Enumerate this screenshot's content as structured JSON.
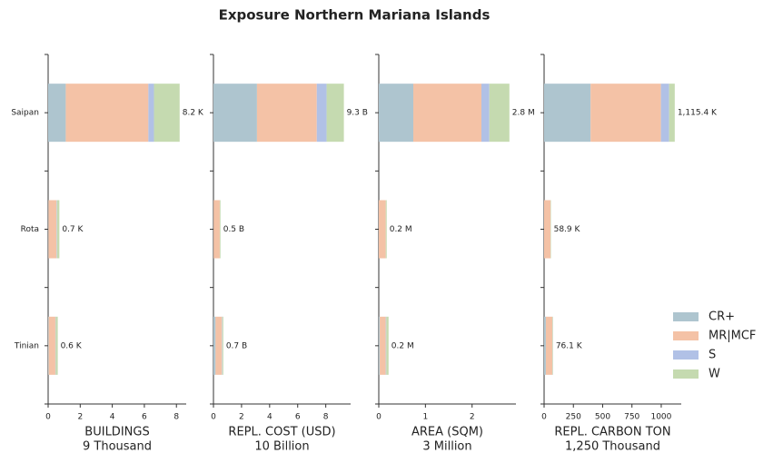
{
  "title": "Exposure Northern Mariana Islands",
  "chart_data": [
    {
      "type": "barh",
      "xlabel": "BUILDINGS",
      "xunit": "9 Thousand",
      "categories": [
        "Saipan",
        "Rota",
        "Tinian"
      ],
      "series": [
        {
          "color": "#aec5cf",
          "values": [
            1.1,
            0.02,
            0.03
          ]
        },
        {
          "color": "#f4c2a6",
          "values": [
            5.15,
            0.5,
            0.42
          ]
        },
        {
          "color": "#b1c1e6",
          "values": [
            0.35,
            0.03,
            0.02
          ]
        },
        {
          "color": "#c5dab0",
          "values": [
            1.6,
            0.15,
            0.13
          ]
        }
      ],
      "value_labels": [
        "8.2 K",
        "0.7 K",
        "0.6 K"
      ],
      "xlim": [
        0,
        8.61
      ],
      "xticks": [
        0,
        2,
        4,
        6,
        8
      ]
    },
    {
      "type": "barh",
      "xlabel": "REPL. COST (USD)",
      "xunit": "10 Billion",
      "categories": [
        "Saipan",
        "Rota",
        "Tinian"
      ],
      "series": [
        {
          "color": "#aec5cf",
          "values": [
            3.1,
            0.01,
            0.15
          ]
        },
        {
          "color": "#f4c2a6",
          "values": [
            4.26,
            0.44,
            0.45
          ]
        },
        {
          "color": "#b1c1e6",
          "values": [
            0.7,
            0.0,
            0.03
          ]
        },
        {
          "color": "#c5dab0",
          "values": [
            1.23,
            0.05,
            0.07
          ]
        }
      ],
      "value_labels": [
        "9.3 B",
        "0.5 B",
        "0.7 B"
      ],
      "xlim": [
        0,
        9.77
      ],
      "xticks": [
        0,
        2,
        4,
        6,
        8
      ]
    },
    {
      "type": "barh",
      "xlabel": "AREA (SQM)",
      "xunit": "3 Million",
      "categories": [
        "Saipan",
        "Rota",
        "Tinian"
      ],
      "series": [
        {
          "color": "#aec5cf",
          "values": [
            0.74,
            0.0,
            0.02
          ]
        },
        {
          "color": "#f4c2a6",
          "values": [
            1.46,
            0.15,
            0.13
          ]
        },
        {
          "color": "#b1c1e6",
          "values": [
            0.17,
            0.0,
            0.01
          ]
        },
        {
          "color": "#c5dab0",
          "values": [
            0.43,
            0.02,
            0.05
          ]
        }
      ],
      "value_labels": [
        "2.8 M",
        "0.2 M",
        "0.2 M"
      ],
      "xlim": [
        0,
        2.94
      ],
      "xticks": [
        0,
        1,
        2
      ]
    },
    {
      "type": "barh",
      "xlabel": "REPL. CARBON TON",
      "xunit": "1,250 Thousand",
      "categories": [
        "Saipan",
        "Rota",
        "Tinian"
      ],
      "series": [
        {
          "name": "CR+",
          "color": "#aec5cf",
          "values": [
            397,
            0,
            15
          ]
        },
        {
          "name": "MR|MCF",
          "color": "#f4c2a6",
          "values": [
            600.4,
            55,
            55
          ]
        },
        {
          "name": "S",
          "color": "#b1c1e6",
          "values": [
            70,
            0,
            2
          ]
        },
        {
          "name": "W",
          "color": "#c5dab0",
          "values": [
            48,
            3.9,
            4.1
          ]
        }
      ],
      "value_labels": [
        "1,115.4 K",
        "58.9 K",
        "76.1 K"
      ],
      "xlim": [
        0,
        1171
      ],
      "xticks": [
        0,
        250,
        500,
        750,
        1000
      ]
    }
  ]
}
